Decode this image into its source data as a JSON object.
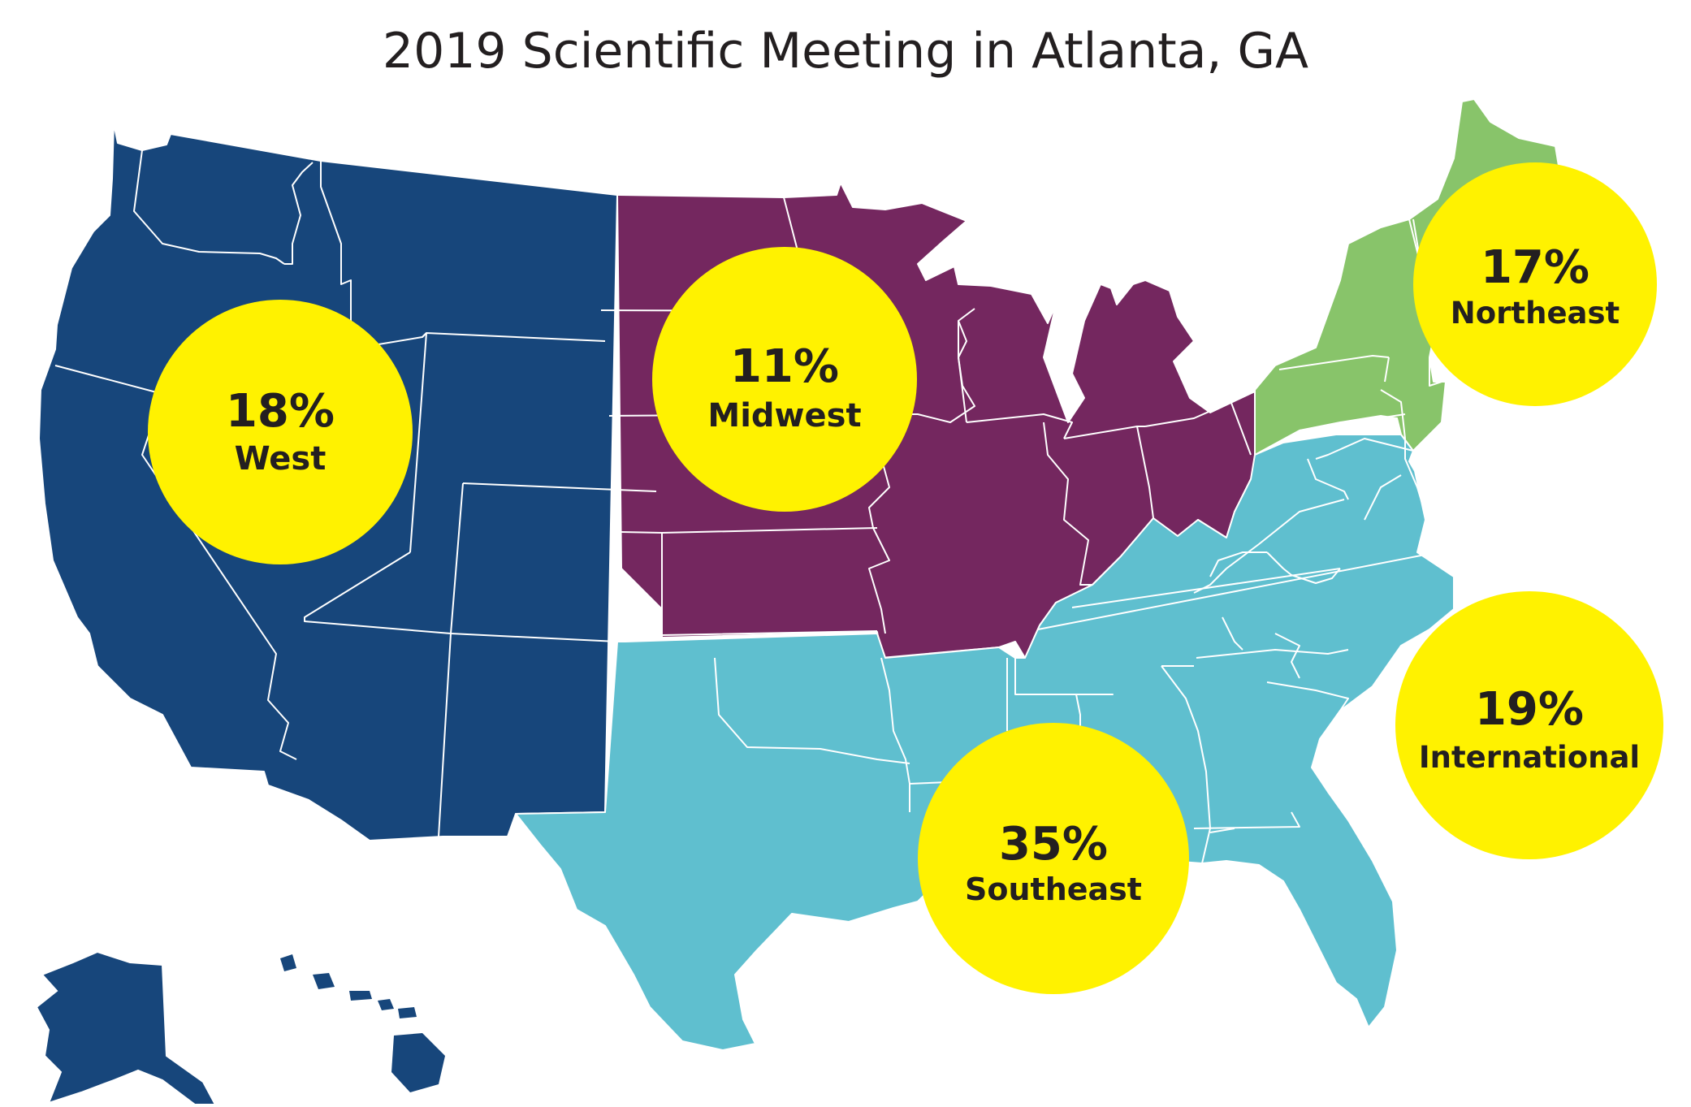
{
  "title": "2019 Scientific Meeting in Atlanta, GA",
  "colors": {
    "west": "#17467b",
    "midwest": "#74275f",
    "southeast": "#5fbfcf",
    "northeast": "#88c46a",
    "bubble": "#fff200",
    "border": "#ffffff",
    "text": "#231f20"
  },
  "regions": [
    {
      "id": "west",
      "percent": "18%",
      "name": "West",
      "share": 18
    },
    {
      "id": "midwest",
      "percent": "11%",
      "name": "Midwest",
      "share": 11
    },
    {
      "id": "northeast",
      "percent": "17%",
      "name": "Northeast",
      "share": 17
    },
    {
      "id": "international",
      "percent": "19%",
      "name": "International",
      "share": 19
    },
    {
      "id": "southeast",
      "percent": "35%",
      "name": "Southeast",
      "share": 35
    }
  ]
}
